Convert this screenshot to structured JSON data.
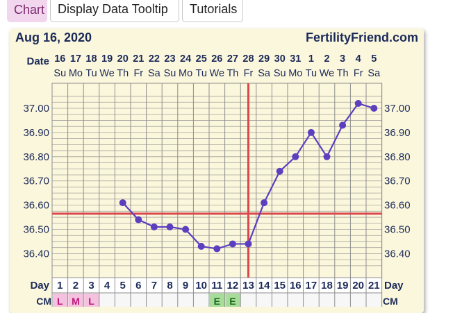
{
  "toolbar": {
    "chart_label": "Chart",
    "tooltip_label": "Display Data Tooltip",
    "tutorials_label": "Tutorials"
  },
  "chart_data": {
    "type": "line",
    "title": "Aug 16, 2020",
    "brand": "FertilityFriend.com",
    "date_row_label": "Date",
    "day_row_label": "Day",
    "cm_row_label": "CM",
    "dates": [
      "16",
      "17",
      "18",
      "19",
      "20",
      "21",
      "22",
      "23",
      "24",
      "25",
      "26",
      "27",
      "28",
      "29",
      "30",
      "31",
      "1",
      "2",
      "3",
      "4",
      "5"
    ],
    "weekdays": [
      "Su",
      "Mo",
      "Tu",
      "We",
      "Th",
      "Fr",
      "Sa",
      "Su",
      "Mo",
      "Tu",
      "We",
      "Th",
      "Fr",
      "Sa",
      "Su",
      "Mo",
      "Tu",
      "We",
      "Th",
      "Fr",
      "Sa"
    ],
    "cycle_days": [
      1,
      2,
      3,
      4,
      5,
      6,
      7,
      8,
      9,
      10,
      11,
      12,
      13,
      14,
      15,
      16,
      17,
      18,
      19,
      20,
      21
    ],
    "y_ticks": [
      "37.00",
      "36.90",
      "36.80",
      "36.70",
      "36.60",
      "36.50",
      "36.40"
    ],
    "ylim": [
      36.35,
      37.1
    ],
    "temperatures": [
      null,
      null,
      null,
      null,
      36.61,
      36.54,
      36.51,
      36.51,
      36.5,
      36.43,
      36.42,
      36.44,
      36.44,
      36.61,
      36.74,
      36.8,
      36.9,
      36.8,
      36.93,
      37.02,
      37.0
    ],
    "coverline": 36.565,
    "ovulation_day": 13,
    "cervical_mucus": [
      "L",
      "M",
      "L",
      "",
      "",
      "",
      "",
      "",
      "",
      "",
      "E",
      "E",
      "",
      "",
      "",
      "",
      "",
      "",
      "",
      "",
      ""
    ],
    "colors": {
      "line": "#5b3fbf",
      "coverline": "#d9484c",
      "grid": "#8e8e8e",
      "cm_l_bg": "#f4c2de",
      "cm_l_fg": "#c0177a",
      "cm_e_bg": "#a8dc9a",
      "cm_e_fg": "#1d6b1d",
      "bg": "#fbf7dc"
    }
  }
}
